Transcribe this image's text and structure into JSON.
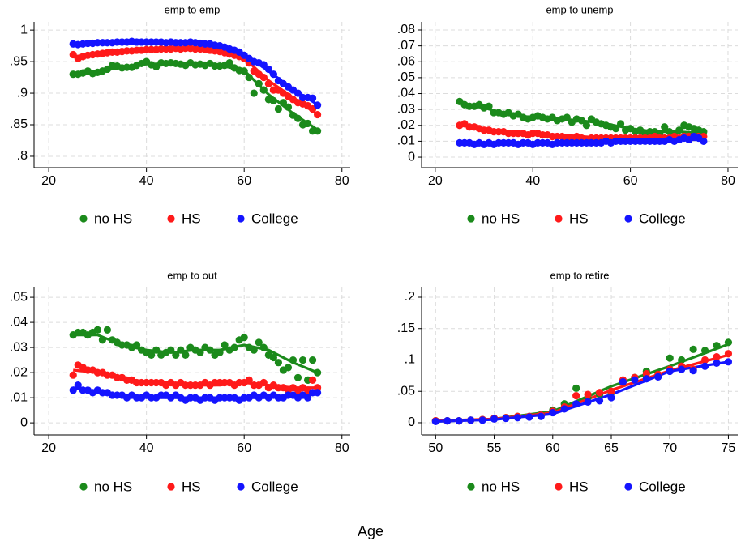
{
  "x_label": "Age",
  "chart_data": [
    {
      "type": "scatter",
      "title": "emp to emp",
      "x": [
        25,
        26,
        27,
        28,
        29,
        30,
        31,
        32,
        33,
        34,
        35,
        36,
        37,
        38,
        39,
        40,
        41,
        42,
        43,
        44,
        45,
        46,
        47,
        48,
        49,
        50,
        51,
        52,
        53,
        54,
        55,
        56,
        57,
        58,
        59,
        60,
        61,
        62,
        63,
        64,
        65,
        66,
        67,
        68,
        69,
        70,
        71,
        72,
        73,
        74,
        75
      ],
      "trend_x": [
        25,
        30,
        35,
        40,
        45,
        50,
        55,
        60,
        65,
        70,
        75
      ],
      "xlim": [
        17.0,
        81.7
      ],
      "xticks": [
        20,
        40,
        60,
        80
      ],
      "ylim": [
        0.782,
        1.013
      ],
      "yticks": [
        {
          "value": 0.8,
          "label": ".8"
        },
        {
          "value": 0.85,
          "label": ".85"
        },
        {
          "value": 0.9,
          "label": ".9"
        },
        {
          "value": 0.95,
          "label": ".95"
        },
        1
      ],
      "grid": true,
      "series": [
        {
          "name": "no HS",
          "color": "#1b8a1b",
          "values": [
            0.93,
            0.93,
            0.932,
            0.935,
            0.931,
            0.933,
            0.935,
            0.938,
            0.944,
            0.943,
            0.94,
            0.941,
            0.941,
            0.944,
            0.947,
            0.95,
            0.945,
            0.942,
            0.948,
            0.947,
            0.948,
            0.947,
            0.946,
            0.944,
            0.948,
            0.945,
            0.946,
            0.944,
            0.947,
            0.943,
            0.943,
            0.944,
            0.948,
            0.94,
            0.936,
            0.935,
            0.925,
            0.9,
            0.915,
            0.905,
            0.89,
            0.888,
            0.875,
            0.885,
            0.878,
            0.865,
            0.86,
            0.85,
            0.852,
            0.84,
            0.84
          ],
          "trend": [
            0.93,
            0.934,
            0.941,
            0.946,
            0.947,
            0.946,
            0.944,
            0.936,
            0.898,
            0.868,
            0.842
          ]
        },
        {
          "name": "HS",
          "color": "#ff1a1a",
          "values": [
            0.961,
            0.955,
            0.958,
            0.96,
            0.961,
            0.962,
            0.963,
            0.964,
            0.965,
            0.965,
            0.966,
            0.967,
            0.967,
            0.968,
            0.968,
            0.969,
            0.969,
            0.969,
            0.97,
            0.97,
            0.97,
            0.971,
            0.97,
            0.971,
            0.971,
            0.97,
            0.97,
            0.969,
            0.968,
            0.967,
            0.966,
            0.964,
            0.962,
            0.96,
            0.958,
            0.955,
            0.948,
            0.935,
            0.93,
            0.925,
            0.915,
            0.905,
            0.905,
            0.9,
            0.895,
            0.89,
            0.885,
            0.883,
            0.88,
            0.875,
            0.866
          ],
          "trend": [
            0.958,
            0.962,
            0.966,
            0.968,
            0.97,
            0.97,
            0.966,
            0.956,
            0.92,
            0.893,
            0.866
          ]
        },
        {
          "name": "College",
          "color": "#1414ff",
          "values": [
            0.978,
            0.977,
            0.978,
            0.979,
            0.979,
            0.98,
            0.98,
            0.98,
            0.98,
            0.981,
            0.981,
            0.981,
            0.982,
            0.981,
            0.981,
            0.981,
            0.981,
            0.981,
            0.981,
            0.98,
            0.981,
            0.98,
            0.98,
            0.98,
            0.981,
            0.98,
            0.979,
            0.978,
            0.978,
            0.976,
            0.975,
            0.973,
            0.97,
            0.968,
            0.965,
            0.96,
            0.955,
            0.95,
            0.948,
            0.945,
            0.938,
            0.93,
            0.92,
            0.915,
            0.91,
            0.905,
            0.9,
            0.893,
            0.893,
            0.892,
            0.881
          ],
          "trend": [
            0.978,
            0.98,
            0.981,
            0.981,
            0.981,
            0.98,
            0.976,
            0.962,
            0.935,
            0.906,
            0.882
          ]
        }
      ]
    },
    {
      "type": "scatter",
      "title": "emp to unemp",
      "x": [
        25,
        26,
        27,
        28,
        29,
        30,
        31,
        32,
        33,
        34,
        35,
        36,
        37,
        38,
        39,
        40,
        41,
        42,
        43,
        44,
        45,
        46,
        47,
        48,
        49,
        50,
        51,
        52,
        53,
        54,
        55,
        56,
        57,
        58,
        59,
        60,
        61,
        62,
        63,
        64,
        65,
        66,
        67,
        68,
        69,
        70,
        71,
        72,
        73,
        74,
        75
      ],
      "trend_x": [
        25,
        30,
        35,
        40,
        45,
        50,
        55,
        60,
        65,
        70,
        75
      ],
      "xlim": [
        17.2,
        82.0
      ],
      "xticks": [
        20,
        40,
        60,
        80
      ],
      "ylim": [
        -0.0066,
        0.0851
      ],
      "yticks": [
        0,
        {
          "value": 0.01,
          "label": ".01"
        },
        {
          "value": 0.02,
          "label": ".02"
        },
        {
          "value": 0.03,
          "label": ".03"
        },
        {
          "value": 0.04,
          "label": ".04"
        },
        {
          "value": 0.05,
          "label": ".05"
        },
        {
          "value": 0.06,
          "label": ".06"
        },
        {
          "value": 0.07,
          "label": ".07"
        },
        {
          "value": 0.08,
          "label": ".08"
        }
      ],
      "grid": true,
      "series": [
        {
          "name": "no HS",
          "color": "#1b8a1b",
          "values": [
            0.035,
            0.033,
            0.032,
            0.032,
            0.033,
            0.031,
            0.032,
            0.028,
            0.028,
            0.027,
            0.028,
            0.026,
            0.027,
            0.025,
            0.024,
            0.025,
            0.026,
            0.025,
            0.024,
            0.025,
            0.023,
            0.024,
            0.025,
            0.022,
            0.024,
            0.023,
            0.02,
            0.024,
            0.022,
            0.021,
            0.02,
            0.019,
            0.018,
            0.021,
            0.017,
            0.018,
            0.016,
            0.017,
            0.015,
            0.016,
            0.016,
            0.015,
            0.019,
            0.016,
            0.015,
            0.017,
            0.02,
            0.019,
            0.018,
            0.017,
            0.016
          ],
          "trend": [
            0.034,
            0.031,
            0.027,
            0.025,
            0.024,
            0.023,
            0.021,
            0.018,
            0.016,
            0.016,
            0.015
          ]
        },
        {
          "name": "HS",
          "color": "#ff1a1a",
          "values": [
            0.02,
            0.021,
            0.019,
            0.019,
            0.018,
            0.017,
            0.017,
            0.016,
            0.016,
            0.016,
            0.015,
            0.015,
            0.015,
            0.015,
            0.014,
            0.015,
            0.015,
            0.014,
            0.014,
            0.013,
            0.013,
            0.013,
            0.012,
            0.012,
            0.013,
            0.012,
            0.011,
            0.012,
            0.012,
            0.012,
            0.012,
            0.012,
            0.012,
            0.012,
            0.012,
            0.012,
            0.012,
            0.012,
            0.012,
            0.012,
            0.013,
            0.012,
            0.012,
            0.012,
            0.013,
            0.012,
            0.013,
            0.013,
            0.013,
            0.013,
            0.013
          ],
          "trend": [
            0.02,
            0.018,
            0.016,
            0.015,
            0.014,
            0.013,
            0.012,
            0.012,
            0.012,
            0.012,
            0.013
          ]
        },
        {
          "name": "College",
          "color": "#1414ff",
          "values": [
            0.009,
            0.009,
            0.009,
            0.008,
            0.009,
            0.008,
            0.009,
            0.008,
            0.009,
            0.009,
            0.009,
            0.009,
            0.008,
            0.009,
            0.009,
            0.008,
            0.009,
            0.009,
            0.009,
            0.008,
            0.009,
            0.009,
            0.009,
            0.009,
            0.009,
            0.009,
            0.009,
            0.009,
            0.009,
            0.009,
            0.01,
            0.009,
            0.01,
            0.01,
            0.01,
            0.01,
            0.01,
            0.01,
            0.01,
            0.01,
            0.01,
            0.01,
            0.01,
            0.011,
            0.01,
            0.011,
            0.012,
            0.011,
            0.013,
            0.012,
            0.01
          ],
          "trend": [
            0.009,
            0.009,
            0.009,
            0.009,
            0.009,
            0.009,
            0.009,
            0.01,
            0.01,
            0.011,
            0.011
          ]
        }
      ]
    },
    {
      "type": "scatter",
      "title": "emp to out",
      "x": [
        25,
        26,
        27,
        28,
        29,
        30,
        31,
        32,
        33,
        34,
        35,
        36,
        37,
        38,
        39,
        40,
        41,
        42,
        43,
        44,
        45,
        46,
        47,
        48,
        49,
        50,
        51,
        52,
        53,
        54,
        55,
        56,
        57,
        58,
        59,
        60,
        61,
        62,
        63,
        64,
        65,
        66,
        67,
        68,
        69,
        70,
        71,
        72,
        73,
        74,
        75
      ],
      "trend_x": [
        25,
        30,
        35,
        40,
        45,
        50,
        55,
        60,
        65,
        70,
        75
      ],
      "xlim": [
        17.0,
        81.7
      ],
      "xticks": [
        20,
        40,
        60,
        80
      ],
      "ylim": [
        -0.0048,
        0.0539
      ],
      "yticks": [
        0,
        {
          "value": 0.01,
          "label": ".01"
        },
        {
          "value": 0.02,
          "label": ".02"
        },
        {
          "value": 0.03,
          "label": ".03"
        },
        {
          "value": 0.04,
          "label": ".04"
        },
        {
          "value": 0.05,
          "label": ".05"
        }
      ],
      "grid": true,
      "series": [
        {
          "name": "no HS",
          "color": "#1b8a1b",
          "values": [
            0.035,
            0.036,
            0.036,
            0.035,
            0.036,
            0.037,
            0.033,
            0.037,
            0.033,
            0.032,
            0.031,
            0.031,
            0.03,
            0.031,
            0.029,
            0.028,
            0.027,
            0.029,
            0.027,
            0.028,
            0.029,
            0.027,
            0.029,
            0.027,
            0.03,
            0.029,
            0.028,
            0.03,
            0.029,
            0.027,
            0.028,
            0.031,
            0.029,
            0.03,
            0.033,
            0.034,
            0.03,
            0.029,
            0.032,
            0.03,
            0.027,
            0.026,
            0.024,
            0.021,
            0.022,
            0.025,
            0.018,
            0.025,
            0.017,
            0.025,
            0.02
          ],
          "trend": [
            0.035,
            0.035,
            0.031,
            0.029,
            0.028,
            0.029,
            0.029,
            0.031,
            0.029,
            0.024,
            0.02
          ]
        },
        {
          "name": "HS",
          "color": "#ff1a1a",
          "values": [
            0.019,
            0.023,
            0.022,
            0.021,
            0.021,
            0.02,
            0.02,
            0.019,
            0.019,
            0.018,
            0.018,
            0.017,
            0.017,
            0.016,
            0.016,
            0.016,
            0.016,
            0.016,
            0.016,
            0.015,
            0.016,
            0.015,
            0.016,
            0.015,
            0.015,
            0.015,
            0.015,
            0.016,
            0.015,
            0.016,
            0.016,
            0.016,
            0.016,
            0.015,
            0.016,
            0.016,
            0.017,
            0.015,
            0.015,
            0.016,
            0.014,
            0.015,
            0.014,
            0.014,
            0.013,
            0.014,
            0.013,
            0.014,
            0.013,
            0.017,
            0.014
          ],
          "trend": [
            0.021,
            0.02,
            0.018,
            0.016,
            0.016,
            0.015,
            0.015,
            0.016,
            0.015,
            0.014,
            0.014
          ]
        },
        {
          "name": "College",
          "color": "#1414ff",
          "values": [
            0.013,
            0.015,
            0.013,
            0.013,
            0.012,
            0.013,
            0.012,
            0.012,
            0.011,
            0.011,
            0.011,
            0.01,
            0.011,
            0.01,
            0.01,
            0.011,
            0.01,
            0.01,
            0.011,
            0.011,
            0.01,
            0.011,
            0.01,
            0.009,
            0.01,
            0.01,
            0.009,
            0.01,
            0.01,
            0.009,
            0.01,
            0.01,
            0.01,
            0.01,
            0.009,
            0.01,
            0.01,
            0.011,
            0.01,
            0.011,
            0.01,
            0.011,
            0.01,
            0.01,
            0.011,
            0.011,
            0.01,
            0.011,
            0.01,
            0.012,
            0.012
          ],
          "trend": [
            0.014,
            0.012,
            0.011,
            0.01,
            0.01,
            0.01,
            0.01,
            0.01,
            0.01,
            0.011,
            0.012
          ]
        }
      ]
    },
    {
      "type": "scatter",
      "title": "emp to retire",
      "x": [
        50,
        51,
        52,
        53,
        54,
        55,
        56,
        57,
        58,
        59,
        60,
        61,
        62,
        63,
        64,
        65,
        66,
        67,
        68,
        69,
        70,
        71,
        72,
        73,
        74,
        75
      ],
      "trend_x": [
        50,
        55,
        60,
        65,
        70,
        75
      ],
      "xlim": [
        48.8,
        75.8
      ],
      "xticks": [
        50,
        55,
        60,
        65,
        70,
        75
      ],
      "ylim": [
        -0.0194,
        0.2155
      ],
      "yticks": [
        0,
        {
          "value": 0.05,
          "label": ".05"
        },
        {
          "value": 0.1,
          "label": ".1"
        },
        {
          "value": 0.15,
          "label": ".15"
        },
        {
          "value": 0.2,
          "label": ".2"
        }
      ],
      "grid": true,
      "series": [
        {
          "name": "no HS",
          "color": "#1b8a1b",
          "values": [
            0.003,
            0.003,
            0.003,
            0.004,
            0.005,
            0.007,
            0.008,
            0.01,
            0.01,
            0.013,
            0.02,
            0.03,
            0.055,
            0.04,
            0.045,
            0.048,
            0.065,
            0.072,
            0.082,
            0.075,
            0.103,
            0.1,
            0.117,
            0.115,
            0.123,
            0.128
          ],
          "trend": [
            0.002,
            0.006,
            0.018,
            0.058,
            0.09,
            0.125
          ]
        },
        {
          "name": "HS",
          "color": "#ff1a1a",
          "values": [
            0.003,
            0.003,
            0.003,
            0.004,
            0.005,
            0.007,
            0.008,
            0.01,
            0.01,
            0.012,
            0.018,
            0.025,
            0.043,
            0.045,
            0.048,
            0.05,
            0.068,
            0.072,
            0.078,
            0.077,
            0.085,
            0.09,
            0.085,
            0.1,
            0.105,
            0.11
          ],
          "trend": [
            0.003,
            0.006,
            0.016,
            0.052,
            0.083,
            0.108
          ]
        },
        {
          "name": "College",
          "color": "#1414ff",
          "values": [
            0.002,
            0.003,
            0.003,
            0.004,
            0.004,
            0.006,
            0.007,
            0.008,
            0.009,
            0.01,
            0.016,
            0.022,
            0.03,
            0.033,
            0.035,
            0.04,
            0.065,
            0.068,
            0.07,
            0.073,
            0.082,
            0.085,
            0.083,
            0.09,
            0.095,
            0.097
          ],
          "trend": [
            0.002,
            0.005,
            0.014,
            0.045,
            0.082,
            0.097
          ]
        }
      ]
    }
  ]
}
